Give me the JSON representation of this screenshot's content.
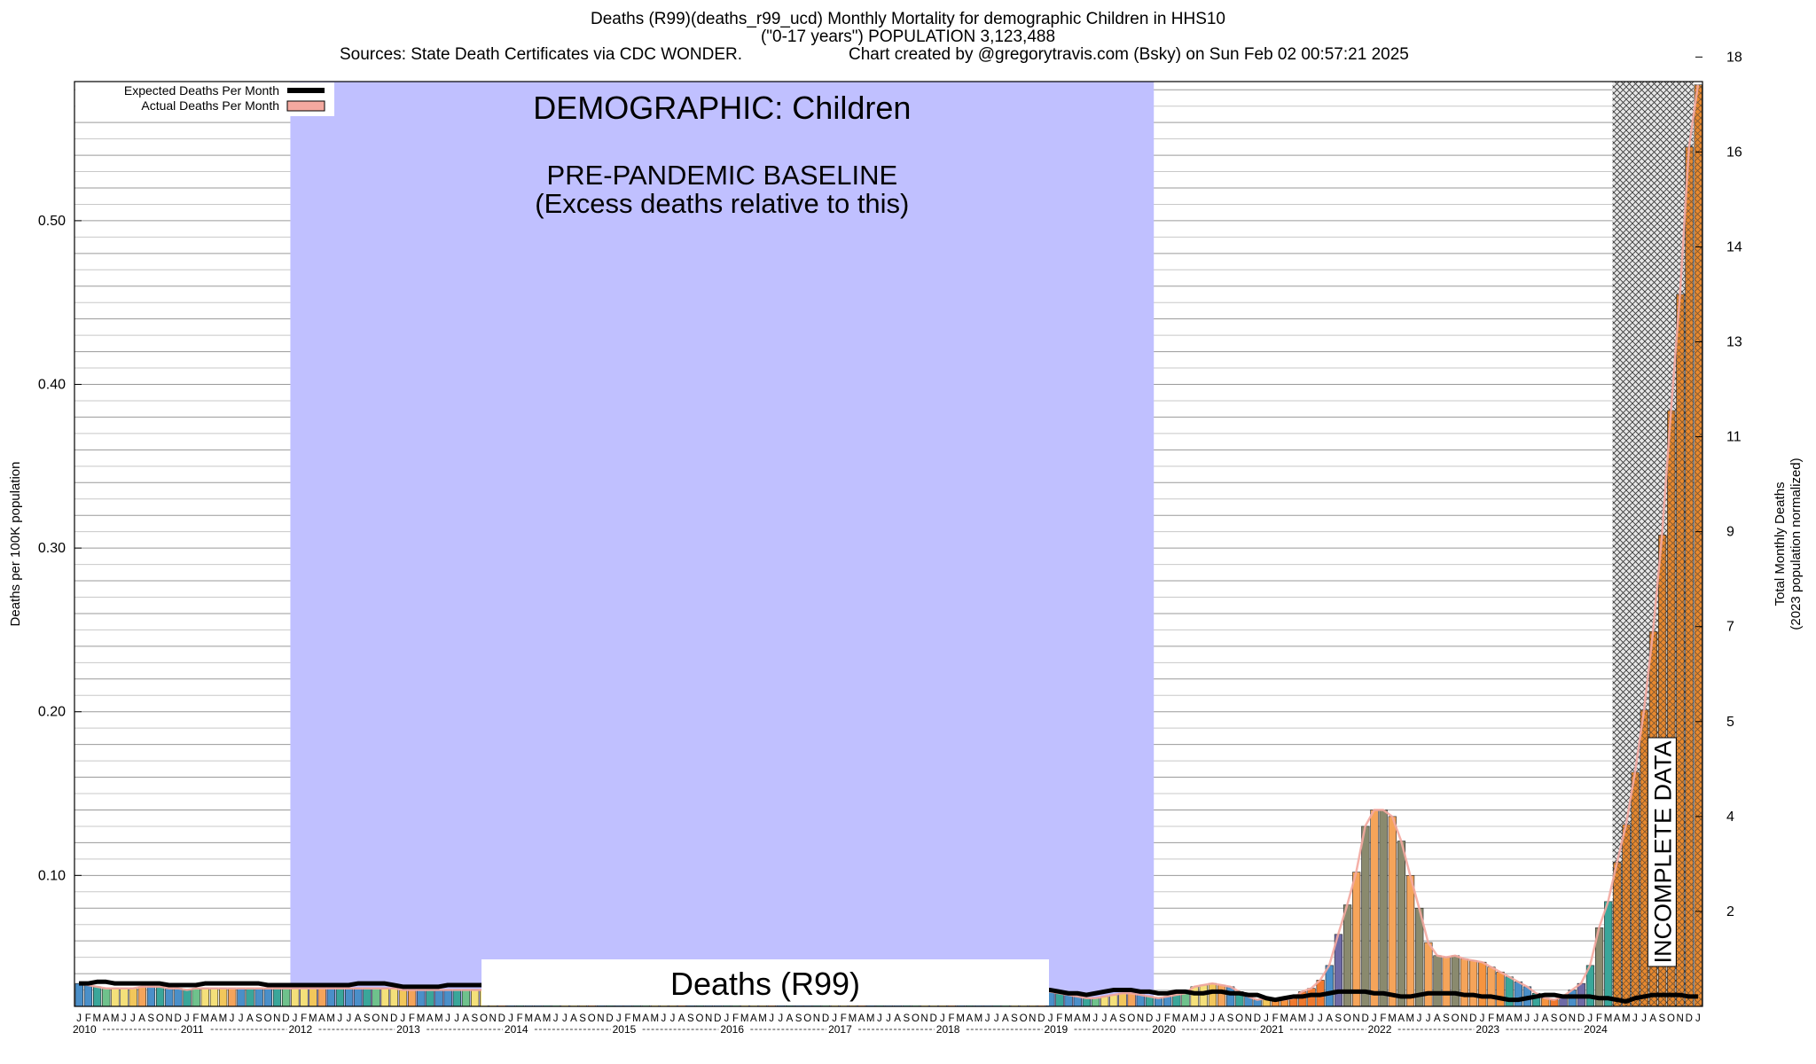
{
  "header": {
    "line1": "Deaths (R99)(deaths_r99_ucd) Monthly Mortality for demographic Children in HHS10",
    "line2": "(\"0-17 years\") POPULATION 3,123,488",
    "sources": "Sources: State Death Certificates via CDC WONDER.",
    "credit": "Chart created by @gregorytravis.com (Bsky) on Sun Feb 02 00:57:21 2025"
  },
  "chart_data": {
    "type": "bar",
    "title": "DEMOGRAPHIC: Children",
    "baseline_label_1": "PRE-PANDEMIC BASELINE",
    "baseline_label_2": "(Excess deaths relative to this)",
    "baseline_range": [
      "2012-01",
      "2019-12"
    ],
    "incomplete_label": "INCOMPLETE DATA",
    "incomplete_range": [
      "2024-04",
      "2024-12"
    ],
    "cause_label": "Deaths (R99)",
    "ylabel_left": "Deaths per 100K population",
    "ylabel_right_1": "Total Monthly Deaths",
    "ylabel_right_2": "(2023 population normalized)",
    "ylim": [
      0.02,
      0.585
    ],
    "y_ticks_left": [
      "0.10",
      "0.20",
      "0.30",
      "0.40",
      "0.50"
    ],
    "y_ticks_left_values": [
      0.1,
      0.2,
      0.3,
      0.4,
      0.5
    ],
    "y_ticks_right": [
      "2",
      "4",
      "5",
      "7",
      "9",
      "11",
      "13",
      "14",
      "16",
      "18"
    ],
    "y_ticks_right_values": [
      0.078,
      0.136,
      0.194,
      0.252,
      0.31,
      0.368,
      0.426,
      0.484,
      0.542,
      0.6
    ],
    "month_letters": [
      "J",
      "F",
      "M",
      "A",
      "M",
      "J",
      "J",
      "A",
      "S",
      "O",
      "N",
      "D"
    ],
    "years": [
      "2010",
      "2011",
      "2012",
      "2013",
      "2014",
      "2015",
      "2016",
      "2017",
      "2018",
      "2019",
      "2020",
      "2021",
      "2022",
      "2023",
      "2024"
    ],
    "legend": [
      {
        "name": "Expected Deaths Per Month",
        "color": "#000000"
      },
      {
        "name": "Actual Deaths Per Month",
        "color": "#f4a9a0"
      }
    ],
    "series": [
      {
        "name": "Actual Deaths Per Month",
        "values": [
          0.034,
          0.033,
          0.032,
          0.031,
          0.031,
          0.031,
          0.031,
          0.032,
          0.032,
          0.032,
          0.031,
          0.031,
          0.03,
          0.031,
          0.031,
          0.031,
          0.031,
          0.031,
          0.031,
          0.031,
          0.031,
          0.031,
          0.031,
          0.031,
          0.031,
          0.031,
          0.031,
          0.031,
          0.031,
          0.031,
          0.031,
          0.031,
          0.031,
          0.031,
          0.031,
          0.031,
          0.03,
          0.03,
          0.03,
          0.03,
          0.03,
          0.03,
          0.03,
          0.03,
          0.03,
          0.03,
          0.03,
          0.03,
          0.03,
          0.03,
          0.03,
          0.03,
          0.03,
          0.03,
          0.03,
          0.03,
          0.03,
          0.03,
          0.03,
          0.03,
          0.03,
          0.03,
          0.03,
          0.03,
          0.03,
          0.03,
          0.03,
          0.03,
          0.03,
          0.03,
          0.03,
          0.03,
          0.03,
          0.03,
          0.03,
          0.03,
          0.03,
          0.03,
          0.03,
          0.03,
          0.03,
          0.03,
          0.03,
          0.03,
          0.029,
          0.029,
          0.029,
          0.029,
          0.029,
          0.029,
          0.029,
          0.029,
          0.029,
          0.029,
          0.029,
          0.029,
          0.029,
          0.029,
          0.029,
          0.029,
          0.029,
          0.029,
          0.029,
          0.029,
          0.029,
          0.029,
          0.029,
          0.029,
          0.029,
          0.028,
          0.027,
          0.026,
          0.025,
          0.025,
          0.026,
          0.027,
          0.028,
          0.028,
          0.027,
          0.026,
          0.025,
          0.026,
          0.027,
          0.028,
          0.032,
          0.033,
          0.034,
          0.033,
          0.032,
          0.029,
          0.026,
          0.024,
          0.025,
          0.024,
          0.024,
          0.025,
          0.029,
          0.031,
          0.036,
          0.045,
          0.064,
          0.082,
          0.102,
          0.13,
          0.14,
          0.14,
          0.136,
          0.121,
          0.1,
          0.08,
          0.059,
          0.051,
          0.05,
          0.051,
          0.049,
          0.048,
          0.047,
          0.044,
          0.041,
          0.038,
          0.035,
          0.032,
          0.028,
          0.025,
          0.024,
          0.026,
          0.03,
          0.034,
          0.045,
          0.068,
          0.084,
          0.108,
          0.131,
          0.163,
          0.201,
          0.249,
          0.308,
          0.384,
          0.455,
          0.545,
          0.583
        ]
      },
      {
        "name": "Expected Deaths Per Month",
        "values": [
          0.034,
          0.034,
          0.035,
          0.035,
          0.034,
          0.034,
          0.034,
          0.034,
          0.034,
          0.034,
          0.033,
          0.033,
          0.033,
          0.033,
          0.034,
          0.034,
          0.034,
          0.034,
          0.034,
          0.034,
          0.034,
          0.033,
          0.033,
          0.033,
          0.033,
          0.033,
          0.033,
          0.033,
          0.033,
          0.033,
          0.033,
          0.034,
          0.034,
          0.034,
          0.034,
          0.033,
          0.032,
          0.032,
          0.032,
          0.032,
          0.032,
          0.033,
          0.033,
          0.033,
          0.033,
          0.033,
          0.032,
          0.032,
          0.032,
          0.032,
          0.032,
          0.032,
          0.032,
          0.032,
          0.032,
          0.032,
          0.032,
          0.032,
          0.032,
          0.032,
          0.031,
          0.031,
          0.031,
          0.031,
          0.031,
          0.031,
          0.031,
          0.031,
          0.031,
          0.031,
          0.031,
          0.031,
          0.031,
          0.031,
          0.031,
          0.031,
          0.031,
          0.031,
          0.031,
          0.031,
          0.031,
          0.031,
          0.031,
          0.031,
          0.031,
          0.031,
          0.031,
          0.031,
          0.031,
          0.031,
          0.031,
          0.031,
          0.031,
          0.031,
          0.031,
          0.031,
          0.03,
          0.03,
          0.03,
          0.03,
          0.03,
          0.03,
          0.03,
          0.03,
          0.03,
          0.03,
          0.03,
          0.03,
          0.03,
          0.029,
          0.028,
          0.028,
          0.027,
          0.028,
          0.029,
          0.03,
          0.03,
          0.03,
          0.029,
          0.029,
          0.028,
          0.028,
          0.029,
          0.029,
          0.028,
          0.028,
          0.029,
          0.029,
          0.028,
          0.028,
          0.027,
          0.027,
          0.025,
          0.024,
          0.025,
          0.026,
          0.026,
          0.027,
          0.027,
          0.028,
          0.029,
          0.029,
          0.029,
          0.029,
          0.028,
          0.028,
          0.027,
          0.026,
          0.026,
          0.027,
          0.028,
          0.028,
          0.028,
          0.028,
          0.027,
          0.027,
          0.026,
          0.026,
          0.025,
          0.024,
          0.024,
          0.025,
          0.026,
          0.027,
          0.027,
          0.026,
          0.026,
          0.026,
          0.026,
          0.025,
          0.025,
          0.024,
          0.023,
          0.025,
          0.026,
          0.027,
          0.027,
          0.027,
          0.027,
          0.026,
          0.026
        ]
      }
    ],
    "colors": {
      "baseline_fill": "#c0c0ff",
      "spike_orange": "#f6943f",
      "deep_orange": "#f0792e",
      "blue": "#4a8fc9",
      "teal": "#3aa69a",
      "yellow": "#f4e07a",
      "gray_green": "#8a8a6e",
      "purple": "#6e6aa6"
    }
  }
}
